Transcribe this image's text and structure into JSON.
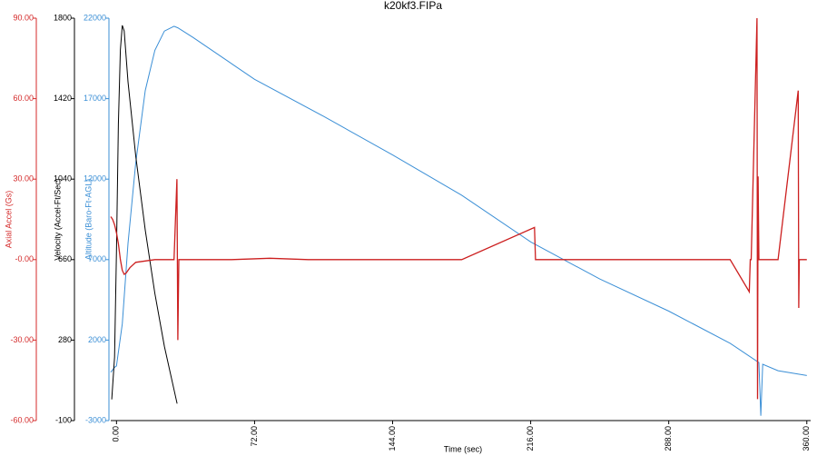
{
  "chart_data": {
    "type": "line",
    "title": "k20kf3.FIPa",
    "xlabel": "Time (sec)",
    "ylabel": "Axial Accel (Gs)",
    "y2label": "Velocity (Accel-Ft/Sec)",
    "y3label": "Altitude (Baro-Ft-AGL)",
    "xlim": [
      -3,
      362
    ],
    "xticks": [
      {
        "value": 0,
        "label": "0.00"
      },
      {
        "value": 72,
        "label": "72.00"
      },
      {
        "value": 144,
        "label": "144.00"
      },
      {
        "value": 216,
        "label": "216.00"
      },
      {
        "value": 288,
        "label": "288.00"
      },
      {
        "value": 360,
        "label": "360.00"
      }
    ],
    "ylim": [
      -60,
      90
    ],
    "yticks": [
      {
        "value": -60,
        "label": "-60.00"
      },
      {
        "value": -30,
        "label": "-30.00"
      },
      {
        "value": 0,
        "label": "-0.00"
      },
      {
        "value": 30,
        "label": "30.00"
      },
      {
        "value": 60,
        "label": "60.00"
      },
      {
        "value": 90,
        "label": "90.00"
      }
    ],
    "y2lim": [
      -100,
      1800
    ],
    "y2ticks": [
      -100,
      280,
      660,
      1040,
      1420,
      1800
    ],
    "y3lim": [
      -3000,
      22000
    ],
    "y3ticks": [
      -3000,
      2000,
      7000,
      12000,
      17000,
      22000
    ],
    "axis_colors": {
      "y": "#d42a2a",
      "y2": "#000000",
      "y3": "#3b8fd6"
    },
    "series": [
      {
        "axis": "y3",
        "color": "#3b8fd6",
        "x": [
          -3,
          -1,
          0,
          3,
          6,
          10,
          15,
          20,
          25,
          30,
          32,
          40,
          72,
          108,
          144,
          180,
          216,
          252,
          288,
          320,
          335,
          336,
          337,
          345,
          360
        ],
        "values": [
          0,
          300,
          400,
          3000,
          8000,
          13000,
          17500,
          20000,
          21200,
          21500,
          21400,
          20800,
          18200,
          15900,
          13500,
          11000,
          8100,
          5800,
          3800,
          1800,
          600,
          -2700,
          500,
          100,
          -200
        ]
      },
      {
        "axis": "y2",
        "color": "#000000",
        "x": [
          -2.5,
          -1,
          0,
          1,
          2,
          3,
          4,
          6,
          10,
          15,
          20,
          25,
          31.6
        ],
        "values": [
          0,
          200,
          700,
          1300,
          1650,
          1766,
          1740,
          1500,
          1150,
          800,
          500,
          250,
          -20
        ]
      },
      {
        "axis": "y",
        "color": "#cc1f1f",
        "x": [
          -3,
          -2,
          -1,
          0,
          1,
          2,
          3,
          4,
          5,
          7,
          10,
          15,
          20,
          25,
          30,
          31.5,
          32,
          32.5,
          33,
          60,
          80,
          100,
          120,
          150,
          180,
          218,
          218.5,
          219,
          230,
          260,
          290,
          320,
          330,
          330.5,
          331,
          334,
          334.3,
          334.6,
          335,
          335.3,
          335.6,
          336,
          345,
          355.5,
          355.8,
          356.1,
          358,
          360
        ],
        "values": [
          16,
          15,
          13,
          10,
          6,
          0,
          -4,
          -5.5,
          -5,
          -3,
          -1,
          -0.5,
          0,
          0,
          0,
          30,
          -30,
          0,
          0,
          0,
          0.5,
          0,
          0,
          0,
          0,
          12,
          0,
          0,
          0,
          0,
          0,
          0,
          -12,
          0,
          0,
          90,
          -52,
          31,
          0,
          0,
          0,
          0,
          0,
          63,
          -18,
          0,
          0,
          0
        ]
      }
    ]
  }
}
